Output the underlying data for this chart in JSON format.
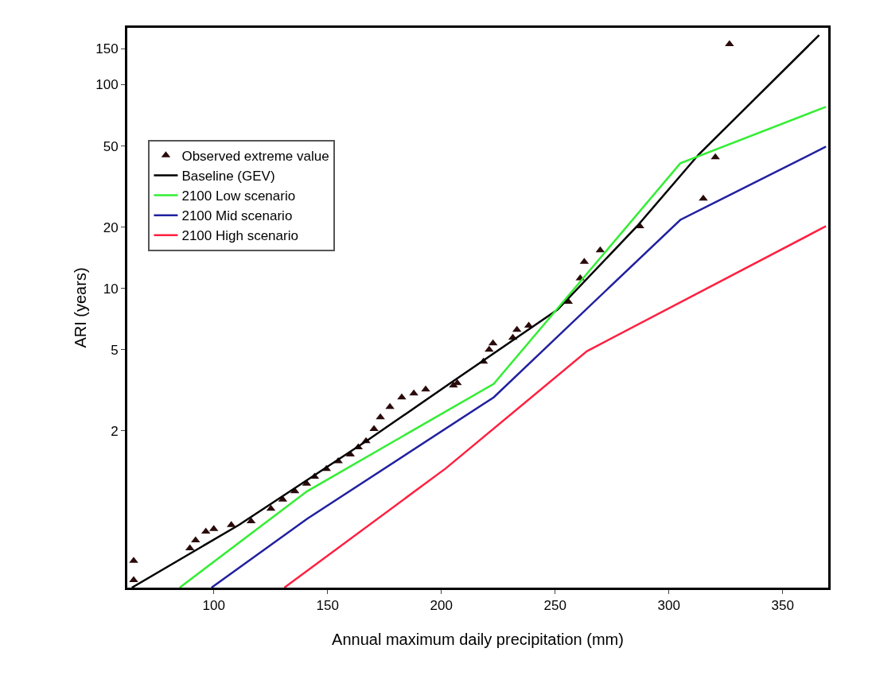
{
  "chart_data": {
    "type": "line",
    "xlabel": "Annual maximum daily precipitation (mm)",
    "ylabel": "ARI (years)",
    "xlim": [
      62,
      370
    ],
    "xticks": [
      100,
      150,
      200,
      250,
      300,
      350
    ],
    "ylim": [
      0.34,
      190
    ],
    "yticks": [
      2,
      5,
      10,
      20,
      50,
      100,
      150
    ],
    "log": "y",
    "grid": false,
    "legend": "top left",
    "series": [
      {
        "name": "Observed extreme value",
        "type": "scatter",
        "marker": "triangle",
        "color": "#2a0a0a",
        "x": [
          64.8,
          64.8,
          89.5,
          92,
          96.5,
          100,
          107.7,
          116.4,
          125.1,
          130.3,
          135.6,
          140.8,
          144.3,
          149.5,
          154.7,
          160,
          163.5,
          166.9,
          170.4,
          173.2,
          177.4,
          182.6,
          187.9,
          193.1,
          205.3,
          207,
          218.5,
          221,
          222.7,
          231.4,
          233.2,
          238.4,
          255.8,
          261,
          262.8,
          269.8,
          287.2,
          315.1,
          320.4,
          326.6
        ],
        "values": [
          0.46,
          0.37,
          0.53,
          0.58,
          0.64,
          0.66,
          0.69,
          0.72,
          0.83,
          0.92,
          1.01,
          1.1,
          1.19,
          1.3,
          1.42,
          1.53,
          1.66,
          1.78,
          2.04,
          2.33,
          2.62,
          2.92,
          3.05,
          3.19,
          3.34,
          3.43,
          4.37,
          5.0,
          5.38,
          5.73,
          6.27,
          6.56,
          8.6,
          11.2,
          13.5,
          15.4,
          20.2,
          27.6,
          44,
          158
        ]
      },
      {
        "name": "Baseline (GEV)",
        "color": "#000000",
        "x": [
          64,
          111,
          167,
          205,
          251,
          286,
          313,
          366
        ],
        "values": [
          0.34,
          0.69,
          1.78,
          3.49,
          7.85,
          20.2,
          45.3,
          175
        ]
      },
      {
        "name": "2100 Low scenario",
        "color": "#33ee33",
        "x": [
          85,
          141,
          223,
          305,
          369
        ],
        "values": [
          0.34,
          1.01,
          3.4,
          41.1,
          77.8
        ]
      },
      {
        "name": "2100 Mid scenario",
        "color": "#2020a0",
        "x": [
          99,
          141,
          223,
          305,
          369
        ],
        "values": [
          0.34,
          0.74,
          2.92,
          21.7,
          49.6
        ]
      },
      {
        "name": "2100 High scenario",
        "color": "#ff2040",
        "x": [
          131,
          202,
          264,
          369
        ],
        "values": [
          0.34,
          1.31,
          4.92,
          20.2
        ]
      }
    ]
  }
}
